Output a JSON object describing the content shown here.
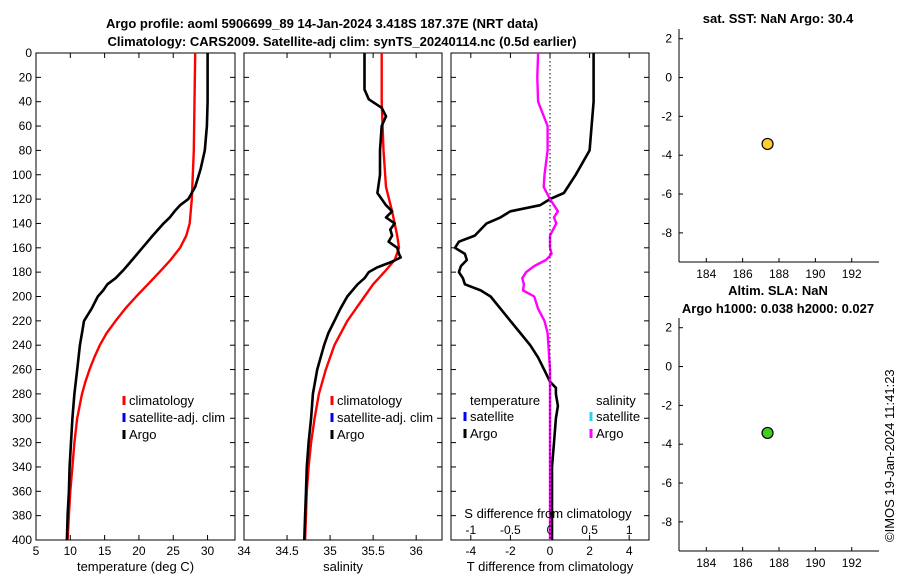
{
  "title_line1": "Argo profile: aoml 5906699_89 14-Jan-2024 3.418S 187.37E (NRT data)",
  "title_line2": "Climatology: CARS2009. Satellite-adj clim: synTS_20240114.nc (0.5d earlier)",
  "watermark": "©IMOS 19-Jan-2024 11:41:23",
  "depth_ticks": [
    "0",
    "20",
    "40",
    "60",
    "80",
    "100",
    "120",
    "140",
    "160",
    "180",
    "200",
    "220",
    "240",
    "260",
    "280",
    "300",
    "320",
    "340",
    "360",
    "380",
    "400"
  ],
  "chart_data": [
    {
      "id": "temperature",
      "type": "line",
      "xlabel": "temperature (deg C)",
      "xlim": [
        5,
        34
      ],
      "ylim": [
        0,
        400
      ],
      "xticks": [
        "5",
        "10",
        "15",
        "20",
        "25",
        "30"
      ],
      "xtick_values": [
        5,
        10,
        15,
        20,
        25,
        30
      ],
      "legend": [
        "climatology",
        "satellite-adj. clim",
        "Argo"
      ],
      "series": [
        {
          "name": "climatology",
          "color": "#ff0000",
          "depth": [
            0,
            40,
            80,
            120,
            140,
            150,
            160,
            170,
            180,
            190,
            200,
            210,
            220,
            230,
            240,
            250,
            260,
            270,
            280,
            300,
            320,
            340,
            360,
            380,
            400
          ],
          "values": [
            28.2,
            28.1,
            28.0,
            27.7,
            27.4,
            26.9,
            26.0,
            24.6,
            23.0,
            21.3,
            19.6,
            18.0,
            16.6,
            15.3,
            14.3,
            13.5,
            12.8,
            12.2,
            11.7,
            11.0,
            10.6,
            10.3,
            10.0,
            9.8,
            9.6
          ]
        },
        {
          "name": "Argo",
          "color": "#000000",
          "depth": [
            0,
            40,
            60,
            80,
            95,
            110,
            120,
            125,
            130,
            135,
            140,
            150,
            160,
            170,
            178,
            185,
            190,
            195,
            200,
            210,
            220,
            230,
            240,
            260,
            280,
            300,
            320,
            340,
            360,
            380,
            400
          ],
          "values": [
            30.0,
            30.0,
            29.9,
            29.6,
            29.0,
            28.2,
            27.2,
            26.0,
            25.2,
            24.5,
            23.6,
            22.0,
            20.5,
            19.0,
            17.8,
            16.6,
            15.4,
            14.8,
            14.0,
            13.1,
            12.0,
            11.7,
            11.4,
            11.0,
            10.6,
            10.3,
            10.1,
            9.9,
            9.8,
            9.6,
            9.5
          ]
        }
      ]
    },
    {
      "id": "salinity",
      "type": "line",
      "xlabel": "salinity",
      "xlim": [
        34,
        36.3
      ],
      "ylim": [
        0,
        400
      ],
      "xticks": [
        "34",
        "34.5",
        "35",
        "35.5",
        "36"
      ],
      "xtick_values": [
        34,
        34.5,
        35,
        35.5,
        36
      ],
      "legend": [
        "climatology",
        "satellite-adj. clim",
        "Argo"
      ],
      "series": [
        {
          "name": "climatology",
          "color": "#ff0000",
          "depth": [
            0,
            40,
            80,
            110,
            130,
            150,
            160,
            170,
            180,
            190,
            200,
            210,
            220,
            240,
            260,
            280,
            300,
            320,
            340,
            360,
            380,
            400
          ],
          "values": [
            35.6,
            35.6,
            35.62,
            35.65,
            35.72,
            35.78,
            35.8,
            35.75,
            35.63,
            35.5,
            35.4,
            35.3,
            35.2,
            35.05,
            34.95,
            34.87,
            34.82,
            34.78,
            34.75,
            34.73,
            34.72,
            34.71
          ]
        },
        {
          "name": "Argo",
          "color": "#000000",
          "depth": [
            0,
            30,
            38,
            45,
            52,
            60,
            80,
            100,
            115,
            125,
            130,
            135,
            140,
            145,
            150,
            155,
            160,
            165,
            168,
            172,
            176,
            180,
            185,
            190,
            200,
            210,
            220,
            230,
            240,
            260,
            280,
            300,
            320,
            340,
            360,
            380,
            400
          ],
          "values": [
            35.4,
            35.4,
            35.45,
            35.6,
            35.65,
            35.6,
            35.58,
            35.58,
            35.55,
            35.65,
            35.72,
            35.65,
            35.75,
            35.7,
            35.72,
            35.68,
            35.78,
            35.8,
            35.82,
            35.7,
            35.55,
            35.45,
            35.4,
            35.32,
            35.2,
            35.12,
            35.05,
            34.98,
            34.93,
            34.85,
            34.8,
            34.78,
            34.75,
            34.73,
            34.72,
            34.71,
            34.7
          ]
        }
      ]
    },
    {
      "id": "difference",
      "type": "line",
      "xlabel": "T difference from climatology",
      "xlabel_top": "S difference from climatology",
      "xlim": [
        -5,
        5
      ],
      "ylim": [
        0,
        400
      ],
      "xticks": [
        "-4",
        "-2",
        "0",
        "2",
        "4"
      ],
      "xtick_values": [
        -4,
        -2,
        0,
        2,
        4
      ],
      "top_xticks": [
        "-1",
        "-0.5",
        "0",
        "0.5",
        "1"
      ],
      "top_xtick_values": [
        -1,
        -0.5,
        0,
        0.5,
        1
      ],
      "legend_temperature_title": "temperature",
      "legend_salinity_title": "salinity",
      "legend_temperature": [
        "satellite",
        "Argo"
      ],
      "legend_salinity": [
        "satellite",
        "Argo"
      ],
      "series": [
        {
          "name": "T Argo",
          "color": "#000000",
          "axis": "T",
          "depth": [
            0,
            40,
            60,
            80,
            100,
            115,
            120,
            125,
            130,
            135,
            140,
            150,
            155,
            160,
            165,
            170,
            175,
            180,
            185,
            190,
            195,
            200,
            210,
            220,
            230,
            240,
            250,
            260,
            270,
            275,
            280,
            290,
            300,
            320,
            340,
            360,
            380,
            400
          ],
          "values": [
            2.2,
            2.2,
            2.1,
            2.0,
            1.3,
            0.7,
            0.0,
            -0.5,
            -2.0,
            -2.5,
            -3.2,
            -3.8,
            -4.6,
            -4.8,
            -4.3,
            -4.2,
            -4.5,
            -4.6,
            -4.4,
            -4.3,
            -3.5,
            -3.0,
            -2.5,
            -2.0,
            -1.5,
            -1.0,
            -0.6,
            -0.3,
            0.0,
            0.3,
            0.3,
            0.4,
            0.3,
            0.2,
            0.1,
            0.1,
            0.1,
            0.1
          ]
        },
        {
          "name": "S Argo",
          "color": "#ff00ff",
          "axis": "S",
          "depth": [
            0,
            20,
            40,
            60,
            80,
            100,
            110,
            120,
            125,
            130,
            135,
            140,
            150,
            160,
            165,
            170,
            175,
            180,
            185,
            190,
            195,
            200,
            210,
            220,
            230,
            240,
            260,
            280,
            300,
            320,
            340,
            360,
            380,
            400
          ],
          "values": [
            -0.15,
            -0.16,
            -0.15,
            -0.03,
            -0.03,
            -0.07,
            -0.08,
            0.0,
            0.05,
            0.1,
            0.05,
            0.08,
            0.0,
            0.0,
            0.02,
            -0.05,
            -0.2,
            -0.3,
            -0.35,
            -0.33,
            -0.34,
            -0.2,
            -0.15,
            -0.07,
            -0.03,
            -0.02,
            0.0,
            0.0,
            0.0,
            0.0,
            0.0,
            0.0,
            0.0,
            0.0
          ]
        }
      ]
    },
    {
      "id": "sst-map",
      "type": "scatter",
      "title": "sat. SST: NaN Argo: 30.4",
      "xlim": [
        182.5,
        193.5
      ],
      "ylim": [
        -9.5,
        2.5
      ],
      "xticks": [
        "184",
        "186",
        "188",
        "190",
        "192"
      ],
      "xtick_values": [
        184,
        186,
        188,
        190,
        192
      ],
      "yticks": [
        "2",
        "0",
        "-2",
        "-4",
        "-6",
        "-8"
      ],
      "ytick_values": [
        2,
        0,
        -2,
        -4,
        -6,
        -8
      ],
      "points": [
        {
          "x": 187.37,
          "y": -3.42,
          "color": "#ffcc33"
        }
      ]
    },
    {
      "id": "sla-map",
      "type": "scatter",
      "title": "Altim. SLA: NaN",
      "title2": "Argo h1000: 0.038 h2000: 0.027",
      "xlim": [
        182.5,
        193.5
      ],
      "ylim": [
        -9.5,
        2.5
      ],
      "xticks": [
        "184",
        "186",
        "188",
        "190",
        "192"
      ],
      "xtick_values": [
        184,
        186,
        188,
        190,
        192
      ],
      "yticks": [
        "2",
        "0",
        "-2",
        "-4",
        "-6",
        "-8"
      ],
      "ytick_values": [
        2,
        0,
        -2,
        -4,
        -6,
        -8
      ],
      "points": [
        {
          "x": 187.37,
          "y": -3.42,
          "color": "#44cc22"
        }
      ]
    }
  ]
}
